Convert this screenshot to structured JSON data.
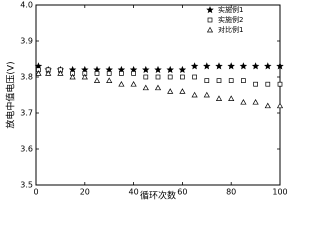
{
  "chart_data": {
    "type": "scatter",
    "xlabel": "循环次数",
    "ylabel": "放电中值电压(V)",
    "x": [
      1,
      5,
      10,
      15,
      20,
      25,
      30,
      35,
      40,
      45,
      50,
      55,
      60,
      65,
      70,
      75,
      80,
      85,
      90,
      95,
      100
    ],
    "series": [
      {
        "name": "实施例1",
        "color": "#000000",
        "marker": "star",
        "values": [
          3.83,
          3.82,
          3.82,
          3.82,
          3.82,
          3.82,
          3.82,
          3.82,
          3.82,
          3.82,
          3.82,
          3.82,
          3.82,
          3.83,
          3.83,
          3.83,
          3.83,
          3.83,
          3.83,
          3.83,
          3.83
        ]
      },
      {
        "name": "实施例2",
        "color": "#000000",
        "marker": "square",
        "values": [
          3.82,
          3.82,
          3.82,
          3.81,
          3.81,
          3.81,
          3.81,
          3.81,
          3.81,
          3.8,
          3.8,
          3.8,
          3.8,
          3.8,
          3.79,
          3.79,
          3.79,
          3.79,
          3.78,
          3.78,
          3.78
        ]
      },
      {
        "name": "对比例1",
        "color": "#000000",
        "marker": "triangle",
        "values": [
          3.81,
          3.81,
          3.81,
          3.8,
          3.8,
          3.79,
          3.79,
          3.78,
          3.78,
          3.77,
          3.77,
          3.76,
          3.76,
          3.75,
          3.75,
          3.74,
          3.74,
          3.73,
          3.73,
          3.72,
          3.72
        ]
      }
    ],
    "xlim": [
      0,
      100
    ],
    "xticks": [
      0,
      20,
      40,
      60,
      80,
      100
    ],
    "ylim": [
      3.5,
      4.0
    ],
    "yticks": [
      {
        "value": 3.5,
        "label": "3.5"
      },
      {
        "value": 3.6,
        "label": "3.6"
      },
      {
        "value": 3.7,
        "label": "3.7"
      },
      {
        "value": 3.8,
        "label": "3.8"
      },
      {
        "value": 3.9,
        "label": "3.9"
      },
      {
        "value": 4.0,
        "label": "4.0"
      }
    ],
    "legend": "upper right"
  }
}
